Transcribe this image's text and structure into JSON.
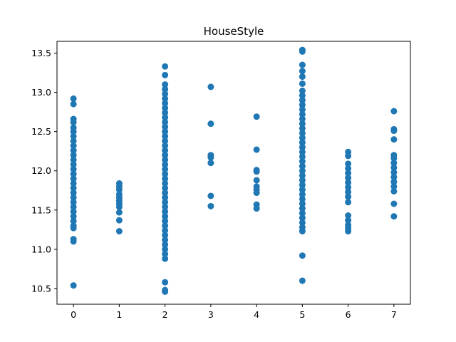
{
  "chart_data": {
    "type": "scatter",
    "title": "HouseStyle",
    "xlabel": "",
    "ylabel": "",
    "xlim": [
      -0.36,
      7.36
    ],
    "ylim": [
      10.3,
      13.65
    ],
    "grid": false,
    "color": "#1f77b4",
    "x_ticks": [
      0,
      1,
      2,
      3,
      4,
      5,
      6,
      7
    ],
    "y_ticks": [
      10.5,
      11.0,
      11.5,
      12.0,
      12.5,
      13.0,
      13.5
    ],
    "x_tick_labels": [
      "0",
      "1",
      "2",
      "3",
      "4",
      "5",
      "6",
      "7"
    ],
    "y_tick_labels": [
      "10.5",
      "11.0",
      "11.5",
      "12.0",
      "12.5",
      "13.0",
      "13.5"
    ],
    "points": [
      {
        "x": 0,
        "y": 12.92
      },
      {
        "x": 0,
        "y": 12.85
      },
      {
        "x": 0,
        "y": 12.66
      },
      {
        "x": 0,
        "y": 12.62
      },
      {
        "x": 0,
        "y": 12.55
      },
      {
        "x": 0,
        "y": 12.5
      },
      {
        "x": 0,
        "y": 12.44
      },
      {
        "x": 0,
        "y": 12.38
      },
      {
        "x": 0,
        "y": 12.32
      },
      {
        "x": 0,
        "y": 12.26
      },
      {
        "x": 0,
        "y": 12.2
      },
      {
        "x": 0,
        "y": 12.14
      },
      {
        "x": 0,
        "y": 12.08
      },
      {
        "x": 0,
        "y": 12.02
      },
      {
        "x": 0,
        "y": 11.96
      },
      {
        "x": 0,
        "y": 11.9
      },
      {
        "x": 0,
        "y": 11.84
      },
      {
        "x": 0,
        "y": 11.78
      },
      {
        "x": 0,
        "y": 11.72
      },
      {
        "x": 0,
        "y": 11.66
      },
      {
        "x": 0,
        "y": 11.6
      },
      {
        "x": 0,
        "y": 11.54
      },
      {
        "x": 0,
        "y": 11.48
      },
      {
        "x": 0,
        "y": 11.42
      },
      {
        "x": 0,
        "y": 11.36
      },
      {
        "x": 0,
        "y": 11.3
      },
      {
        "x": 0,
        "y": 11.27
      },
      {
        "x": 0,
        "y": 11.13
      },
      {
        "x": 0,
        "y": 11.1
      },
      {
        "x": 0,
        "y": 10.54
      },
      {
        "x": 1,
        "y": 11.84
      },
      {
        "x": 1,
        "y": 11.8
      },
      {
        "x": 1,
        "y": 11.76
      },
      {
        "x": 1,
        "y": 11.7
      },
      {
        "x": 1,
        "y": 11.66
      },
      {
        "x": 1,
        "y": 11.62
      },
      {
        "x": 1,
        "y": 11.58
      },
      {
        "x": 1,
        "y": 11.54
      },
      {
        "x": 1,
        "y": 11.47
      },
      {
        "x": 1,
        "y": 11.37
      },
      {
        "x": 1,
        "y": 11.23
      },
      {
        "x": 2,
        "y": 13.33
      },
      {
        "x": 2,
        "y": 13.22
      },
      {
        "x": 2,
        "y": 13.1
      },
      {
        "x": 2,
        "y": 13.04
      },
      {
        "x": 2,
        "y": 12.98
      },
      {
        "x": 2,
        "y": 12.92
      },
      {
        "x": 2,
        "y": 12.86
      },
      {
        "x": 2,
        "y": 12.8
      },
      {
        "x": 2,
        "y": 12.74
      },
      {
        "x": 2,
        "y": 12.68
      },
      {
        "x": 2,
        "y": 12.62
      },
      {
        "x": 2,
        "y": 12.56
      },
      {
        "x": 2,
        "y": 12.5
      },
      {
        "x": 2,
        "y": 12.44
      },
      {
        "x": 2,
        "y": 12.38
      },
      {
        "x": 2,
        "y": 12.32
      },
      {
        "x": 2,
        "y": 12.26
      },
      {
        "x": 2,
        "y": 12.2
      },
      {
        "x": 2,
        "y": 12.14
      },
      {
        "x": 2,
        "y": 12.08
      },
      {
        "x": 2,
        "y": 12.02
      },
      {
        "x": 2,
        "y": 11.96
      },
      {
        "x": 2,
        "y": 11.9
      },
      {
        "x": 2,
        "y": 11.84
      },
      {
        "x": 2,
        "y": 11.78
      },
      {
        "x": 2,
        "y": 11.72
      },
      {
        "x": 2,
        "y": 11.66
      },
      {
        "x": 2,
        "y": 11.6
      },
      {
        "x": 2,
        "y": 11.54
      },
      {
        "x": 2,
        "y": 11.48
      },
      {
        "x": 2,
        "y": 11.42
      },
      {
        "x": 2,
        "y": 11.36
      },
      {
        "x": 2,
        "y": 11.3
      },
      {
        "x": 2,
        "y": 11.24
      },
      {
        "x": 2,
        "y": 11.18
      },
      {
        "x": 2,
        "y": 11.12
      },
      {
        "x": 2,
        "y": 11.06
      },
      {
        "x": 2,
        "y": 11.0
      },
      {
        "x": 2,
        "y": 10.94
      },
      {
        "x": 2,
        "y": 10.88
      },
      {
        "x": 2,
        "y": 10.58
      },
      {
        "x": 2,
        "y": 10.48
      },
      {
        "x": 2,
        "y": 10.46
      },
      {
        "x": 3,
        "y": 13.07
      },
      {
        "x": 3,
        "y": 12.6
      },
      {
        "x": 3,
        "y": 12.2
      },
      {
        "x": 3,
        "y": 12.17
      },
      {
        "x": 3,
        "y": 12.1
      },
      {
        "x": 3,
        "y": 11.68
      },
      {
        "x": 3,
        "y": 11.55
      },
      {
        "x": 4,
        "y": 12.69
      },
      {
        "x": 4,
        "y": 12.27
      },
      {
        "x": 4,
        "y": 12.01
      },
      {
        "x": 4,
        "y": 11.99
      },
      {
        "x": 4,
        "y": 11.88
      },
      {
        "x": 4,
        "y": 11.8
      },
      {
        "x": 4,
        "y": 11.76
      },
      {
        "x": 4,
        "y": 11.72
      },
      {
        "x": 4,
        "y": 11.57
      },
      {
        "x": 4,
        "y": 11.52
      },
      {
        "x": 5,
        "y": 13.54
      },
      {
        "x": 5,
        "y": 13.52
      },
      {
        "x": 5,
        "y": 13.35
      },
      {
        "x": 5,
        "y": 13.27
      },
      {
        "x": 5,
        "y": 13.2
      },
      {
        "x": 5,
        "y": 13.11
      },
      {
        "x": 5,
        "y": 13.02
      },
      {
        "x": 5,
        "y": 12.96
      },
      {
        "x": 5,
        "y": 12.9
      },
      {
        "x": 5,
        "y": 12.84
      },
      {
        "x": 5,
        "y": 12.78
      },
      {
        "x": 5,
        "y": 12.72
      },
      {
        "x": 5,
        "y": 12.66
      },
      {
        "x": 5,
        "y": 12.6
      },
      {
        "x": 5,
        "y": 12.54
      },
      {
        "x": 5,
        "y": 12.48
      },
      {
        "x": 5,
        "y": 12.42
      },
      {
        "x": 5,
        "y": 12.36
      },
      {
        "x": 5,
        "y": 12.3
      },
      {
        "x": 5,
        "y": 12.24
      },
      {
        "x": 5,
        "y": 12.18
      },
      {
        "x": 5,
        "y": 12.12
      },
      {
        "x": 5,
        "y": 12.06
      },
      {
        "x": 5,
        "y": 12.0
      },
      {
        "x": 5,
        "y": 11.94
      },
      {
        "x": 5,
        "y": 11.88
      },
      {
        "x": 5,
        "y": 11.82
      },
      {
        "x": 5,
        "y": 11.76
      },
      {
        "x": 5,
        "y": 11.7
      },
      {
        "x": 5,
        "y": 11.64
      },
      {
        "x": 5,
        "y": 11.58
      },
      {
        "x": 5,
        "y": 11.52
      },
      {
        "x": 5,
        "y": 11.46
      },
      {
        "x": 5,
        "y": 11.4
      },
      {
        "x": 5,
        "y": 11.34
      },
      {
        "x": 5,
        "y": 11.28
      },
      {
        "x": 5,
        "y": 11.23
      },
      {
        "x": 5,
        "y": 10.92
      },
      {
        "x": 5,
        "y": 10.6
      },
      {
        "x": 6,
        "y": 12.24
      },
      {
        "x": 6,
        "y": 12.19
      },
      {
        "x": 6,
        "y": 12.09
      },
      {
        "x": 6,
        "y": 12.03
      },
      {
        "x": 6,
        "y": 11.97
      },
      {
        "x": 6,
        "y": 11.91
      },
      {
        "x": 6,
        "y": 11.85
      },
      {
        "x": 6,
        "y": 11.79
      },
      {
        "x": 6,
        "y": 11.73
      },
      {
        "x": 6,
        "y": 11.67
      },
      {
        "x": 6,
        "y": 11.6
      },
      {
        "x": 6,
        "y": 11.43
      },
      {
        "x": 6,
        "y": 11.37
      },
      {
        "x": 6,
        "y": 11.31
      },
      {
        "x": 6,
        "y": 11.27
      },
      {
        "x": 6,
        "y": 11.23
      },
      {
        "x": 7,
        "y": 12.76
      },
      {
        "x": 7,
        "y": 12.53
      },
      {
        "x": 7,
        "y": 12.51
      },
      {
        "x": 7,
        "y": 12.4
      },
      {
        "x": 7,
        "y": 12.2
      },
      {
        "x": 7,
        "y": 12.16
      },
      {
        "x": 7,
        "y": 12.1
      },
      {
        "x": 7,
        "y": 12.04
      },
      {
        "x": 7,
        "y": 11.98
      },
      {
        "x": 7,
        "y": 11.92
      },
      {
        "x": 7,
        "y": 11.86
      },
      {
        "x": 7,
        "y": 11.8
      },
      {
        "x": 7,
        "y": 11.74
      },
      {
        "x": 7,
        "y": 11.58
      },
      {
        "x": 7,
        "y": 11.42
      }
    ]
  }
}
